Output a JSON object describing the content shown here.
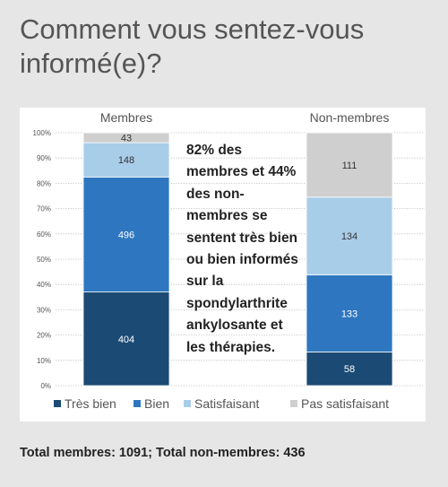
{
  "title": "Comment vous sentez-vous informé(e)?",
  "annotation": "82% des membres et 44% des non-membres se sentent très bien ou bien informés sur la spondylarthrite ankylosante et les thérapies.",
  "footer": "Total membres: 1091; Total non-membres: 436",
  "colors": {
    "tres_bien": "#1b4b74",
    "bien": "#2e77c0",
    "satisfaisant": "#a8cde9",
    "pas_satisfaisant": "#cfcfcf"
  },
  "chart_data": {
    "type": "bar",
    "stacked": true,
    "normalized": true,
    "categories": [
      "Membres",
      "Non-membres"
    ],
    "ylim": [
      0,
      100
    ],
    "yticks": [
      "0%",
      "10%",
      "20%",
      "30%",
      "40%",
      "50%",
      "60%",
      "70%",
      "80%",
      "90%",
      "100%"
    ],
    "grid": true,
    "legend_position": "bottom",
    "series": [
      {
        "name": "Très bien",
        "color": "#1b4b74",
        "values": [
          404,
          58
        ]
      },
      {
        "name": "Bien",
        "color": "#2e77c0",
        "values": [
          496,
          133
        ]
      },
      {
        "name": "Satisfaisant",
        "color": "#a8cde9",
        "values": [
          148,
          134
        ]
      },
      {
        "name": "Pas satisfaisant",
        "color": "#cfcfcf",
        "values": [
          43,
          111
        ]
      }
    ]
  }
}
